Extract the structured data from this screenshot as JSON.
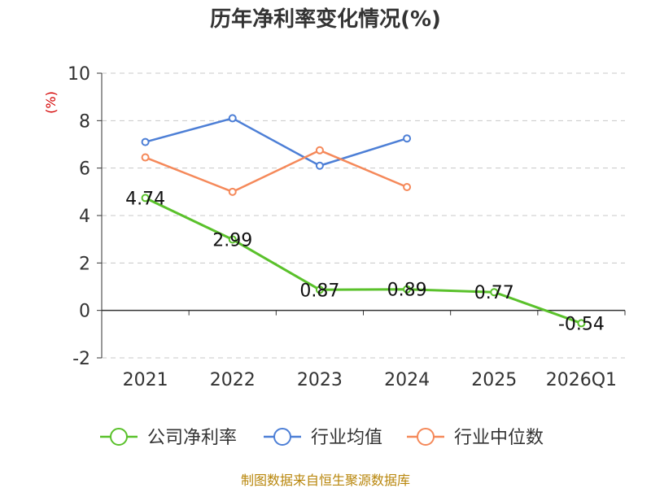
{
  "chart_data": {
    "type": "line",
    "title": "历年净利率变化情况(%)",
    "ylabel": "(%)",
    "categories": [
      "2021",
      "2022",
      "2023",
      "2024",
      "2025",
      "2026Q1"
    ],
    "ylim": [
      -2,
      10
    ],
    "yticks": [
      -2,
      0,
      2,
      4,
      6,
      8,
      10
    ],
    "grid": true,
    "legend_position": "bottom",
    "series": [
      {
        "name": "公司净利率",
        "color": "#5ac12b",
        "values": [
          4.74,
          2.99,
          0.87,
          0.89,
          0.77,
          -0.54
        ],
        "labels": [
          "4.74",
          "2.99",
          "0.87",
          "0.89",
          "0.77",
          "-0.54"
        ]
      },
      {
        "name": "行业均值",
        "color": "#4d7fd6",
        "values": [
          7.1,
          8.1,
          6.1,
          7.25,
          null,
          null
        ]
      },
      {
        "name": "行业中位数",
        "color": "#f5895a",
        "values": [
          6.45,
          5.0,
          6.75,
          5.2,
          null,
          null
        ]
      }
    ]
  },
  "source_note": "制图数据来自恒生聚源数据库"
}
